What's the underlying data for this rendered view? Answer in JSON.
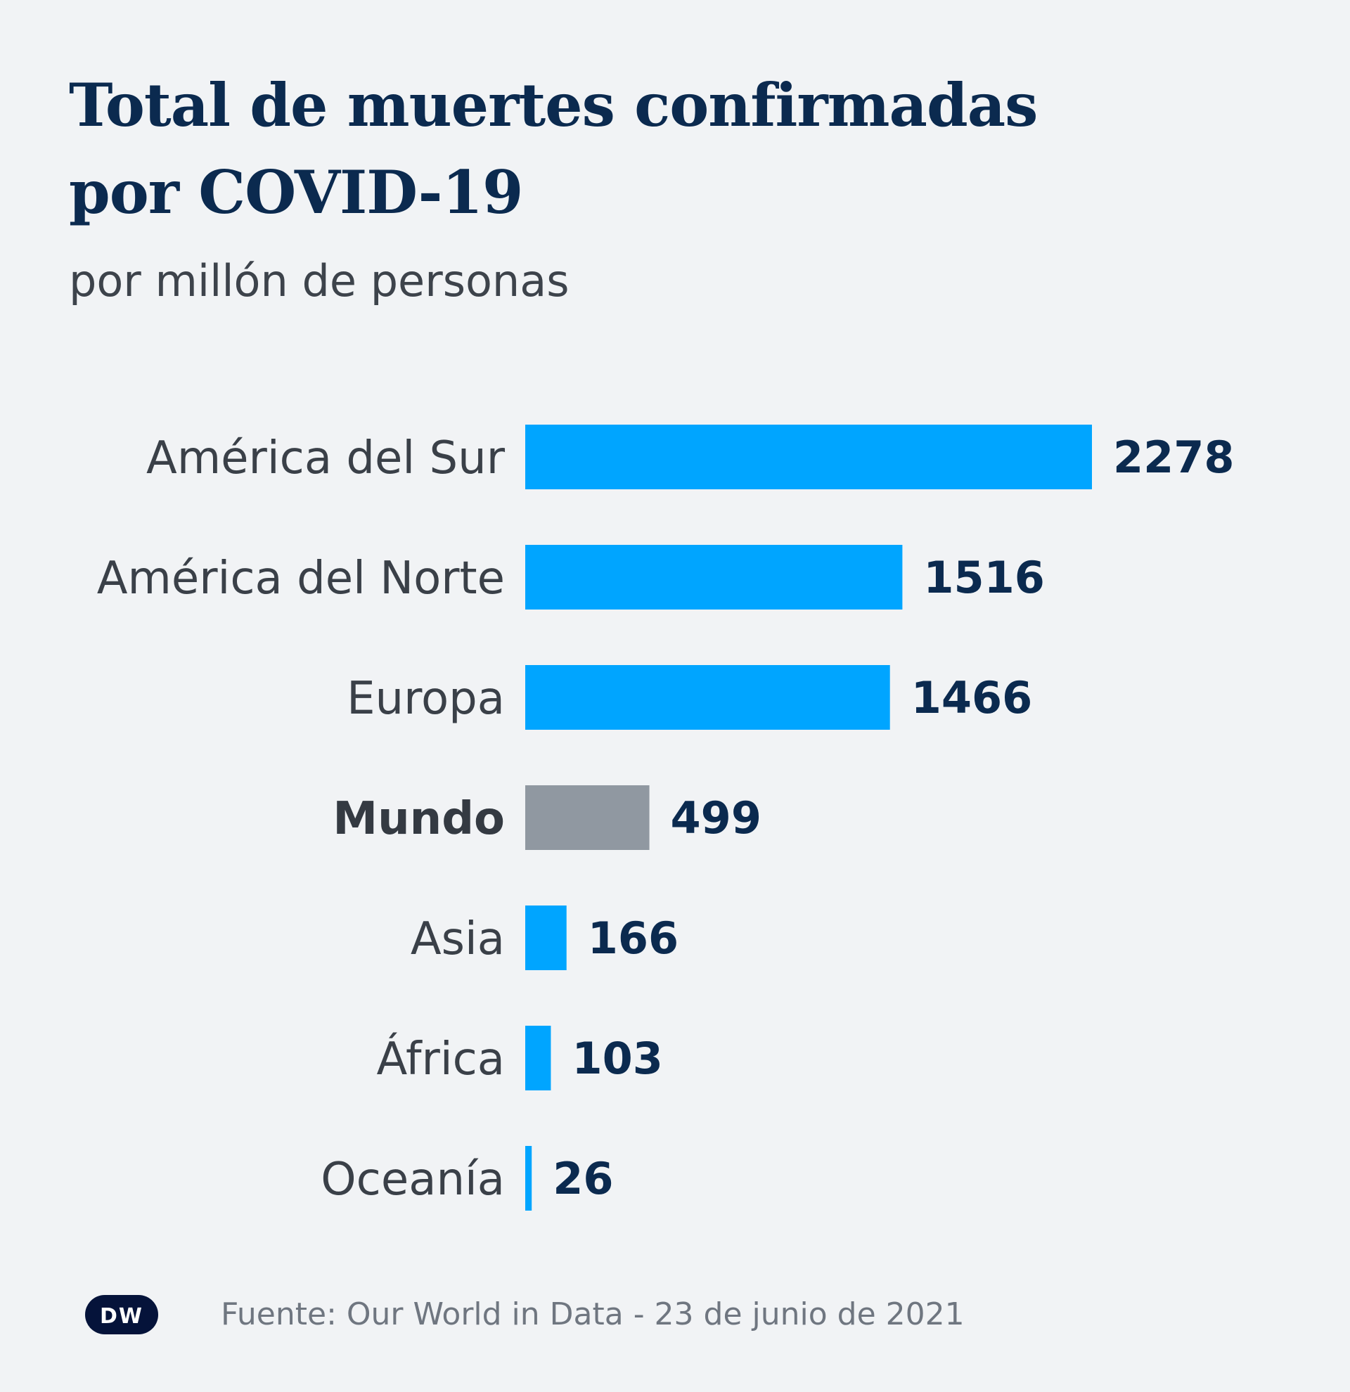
{
  "chart_data": {
    "type": "bar",
    "orientation": "horizontal",
    "title_lines": [
      "Total de muertes confirmadas",
      "por COVID-19"
    ],
    "subtitle": "por millón de personas",
    "categories": [
      "América del Sur",
      "América del Norte",
      "Europa",
      "Mundo",
      "Asia",
      "África",
      "Oceanía"
    ],
    "values": [
      2278,
      1516,
      1466,
      499,
      166,
      103,
      26
    ],
    "highlight": "Mundo",
    "xlim": [
      0,
      2278
    ],
    "grid": false,
    "xlabel": "",
    "ylabel": ""
  },
  "colors": {
    "background": "#f1f3f5",
    "bar": "#00a5ff",
    "bar_highlight": "#9098a1",
    "value_text": "#0b2a4f",
    "title_text": "#0b2a4f"
  },
  "footer": {
    "logo": "DW",
    "source": "Fuente: Our World in Data - 23 de junio de 2021"
  }
}
